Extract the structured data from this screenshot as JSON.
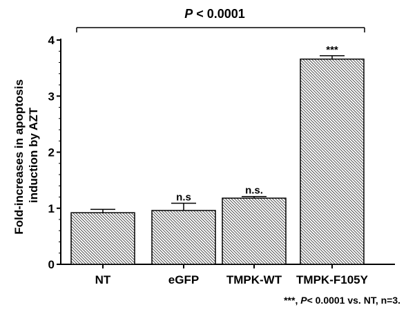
{
  "chart_data": {
    "type": "bar",
    "categories": [
      "NT",
      "eGFP",
      "TMPK-WT",
      "TMPK-F105Y"
    ],
    "values": [
      0.92,
      0.96,
      1.18,
      3.66
    ],
    "errors": [
      0.06,
      0.13,
      0.03,
      0.06
    ],
    "significance": [
      "",
      "n.s",
      "n.s.",
      "***"
    ],
    "ylabel_lines": [
      "Fold-increases in apoptosis",
      "induction by AZT"
    ],
    "yticks": [
      "0",
      "1",
      "2",
      "3",
      "4"
    ],
    "ylim": [
      0,
      4
    ],
    "bracket": {
      "prefix": "P",
      "text": " < 0.0001"
    },
    "footnote": {
      "part1": "***, ",
      "italic": "P",
      "part2": "< 0.0001 vs. NT, n=3."
    },
    "bar_pattern": "diagonal-hatch",
    "colors": {
      "bar_fill": "#ffffff",
      "hatch": "#000000",
      "axis": "#000000"
    }
  }
}
